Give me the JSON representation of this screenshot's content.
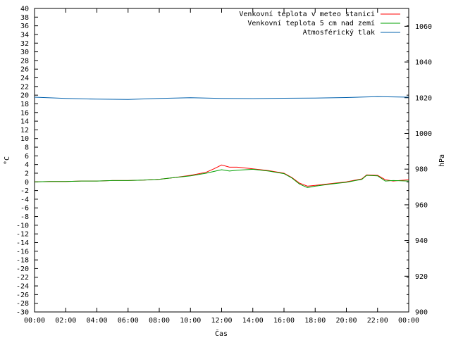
{
  "chart_data": {
    "type": "line",
    "x_axis": {
      "label": "Čas",
      "ticks": [
        "00:00",
        "02:00",
        "04:00",
        "06:00",
        "08:00",
        "10:00",
        "12:00",
        "14:00",
        "16:00",
        "18:00",
        "20:00",
        "22:00",
        "00:00"
      ],
      "range_hours": [
        0,
        24
      ]
    },
    "y_axis_left": {
      "label": "°C",
      "range": [
        -30,
        40
      ],
      "tick_step": 2
    },
    "y_axis_right": {
      "label": "hPa",
      "range": [
        900,
        1070
      ],
      "ticks": [
        900,
        920,
        940,
        960,
        980,
        1000,
        1020,
        1040,
        1060
      ]
    },
    "legend_position": "top-right",
    "grid": false,
    "series": [
      {
        "name": "Venkovní teplota v meteo stanici",
        "color": "#ff0000",
        "axis": "left",
        "x": [
          0,
          1,
          2,
          3,
          4,
          5,
          6,
          7,
          8,
          9,
          10,
          11,
          11.5,
          12,
          12.5,
          13,
          14,
          15,
          16,
          16.5,
          17,
          17.5,
          18,
          19,
          20,
          21,
          21.3,
          22,
          22.5,
          23,
          24
        ],
        "y": [
          0,
          0.1,
          0.1,
          0.2,
          0.2,
          0.3,
          0.3,
          0.4,
          0.6,
          1.0,
          1.5,
          2.2,
          3.0,
          3.9,
          3.4,
          3.4,
          3.0,
          2.6,
          2.0,
          1.0,
          -0.3,
          -1.0,
          -0.8,
          -0.4,
          0.0,
          0.7,
          1.6,
          1.5,
          0.5,
          0.2,
          0.5
        ]
      },
      {
        "name": "Venkovní teplota 5 cm nad zemí",
        "color": "#00a000",
        "axis": "left",
        "x": [
          0,
          1,
          2,
          3,
          4,
          5,
          6,
          7,
          8,
          9,
          10,
          11,
          11.5,
          12,
          12.5,
          13,
          14,
          15,
          16,
          16.5,
          17,
          17.5,
          18,
          19,
          20,
          21,
          21.3,
          22,
          22.5,
          23,
          24
        ],
        "y": [
          0,
          0.1,
          0.1,
          0.2,
          0.2,
          0.3,
          0.3,
          0.4,
          0.6,
          1.0,
          1.4,
          2.0,
          2.4,
          2.8,
          2.5,
          2.7,
          2.9,
          2.5,
          1.9,
          0.9,
          -0.5,
          -1.3,
          -1.0,
          -0.5,
          -0.1,
          0.6,
          1.5,
          1.4,
          0.2,
          0.3,
          0.2
        ]
      },
      {
        "name": "Atmosférický tlak",
        "color": "#0060ad",
        "axis": "right",
        "x": [
          0,
          2,
          4,
          6,
          8,
          10,
          12,
          14,
          16,
          18,
          20,
          22,
          24
        ],
        "y": [
          1020.3,
          1019.6,
          1019.2,
          1019.0,
          1019.6,
          1020.0,
          1019.6,
          1019.5,
          1019.7,
          1019.8,
          1020.1,
          1020.6,
          1020.3
        ]
      }
    ]
  }
}
